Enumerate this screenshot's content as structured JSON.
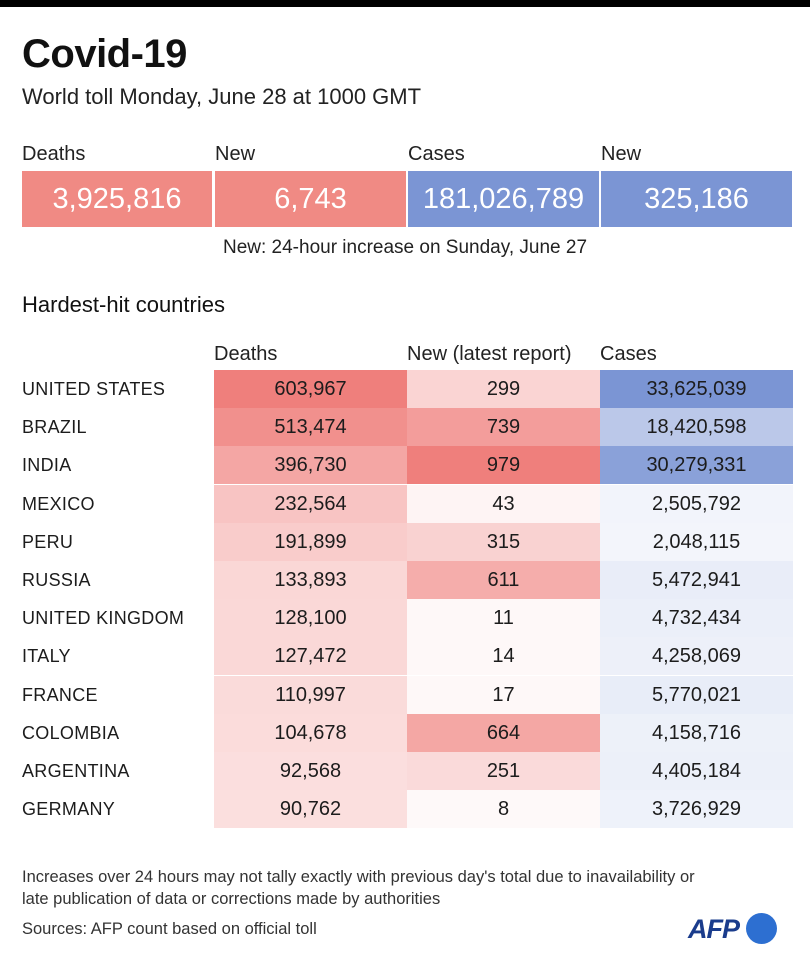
{
  "header": {
    "title": "Covid-19",
    "subtitle": "World toll Monday, June 28 at 1000 GMT"
  },
  "summary": [
    {
      "label": "Deaths",
      "value": "3,925,816",
      "color": "#f08a84"
    },
    {
      "label": "New",
      "value": "6,743",
      "color": "#f08a84"
    },
    {
      "label": "Cases",
      "value": "181,026,789",
      "color": "#7b95d4"
    },
    {
      "label": "New",
      "value": "325,186",
      "color": "#7b95d4"
    }
  ],
  "summary_note": "New: 24-hour increase on Sunday, June 27",
  "section_title": "Hardest-hit countries",
  "chart_data": {
    "type": "table",
    "columns": [
      "Deaths",
      "New (latest report)",
      "Cases"
    ],
    "rows": [
      {
        "country": "UNITED STATES",
        "deaths": "603,967",
        "new": "299",
        "cases": "33,625,039"
      },
      {
        "country": "BRAZIL",
        "deaths": "513,474",
        "new": "739",
        "cases": "18,420,598"
      },
      {
        "country": "INDIA",
        "deaths": "396,730",
        "new": "979",
        "cases": "30,279,331"
      },
      {
        "country": "MEXICO",
        "deaths": "232,564",
        "new": "43",
        "cases": "2,505,792"
      },
      {
        "country": "PERU",
        "deaths": "191,899",
        "new": "315",
        "cases": "2,048,115"
      },
      {
        "country": "RUSSIA",
        "deaths": "133,893",
        "new": "611",
        "cases": "5,472,941"
      },
      {
        "country": "UNITED KINGDOM",
        "deaths": "128,100",
        "new": "11",
        "cases": "4,732,434"
      },
      {
        "country": "ITALY",
        "deaths": "127,472",
        "new": "14",
        "cases": "4,258,069"
      },
      {
        "country": "FRANCE",
        "deaths": "110,997",
        "new": "17",
        "cases": "5,770,021"
      },
      {
        "country": "COLOMBIA",
        "deaths": "104,678",
        "new": "664",
        "cases": "4,158,716"
      },
      {
        "country": "ARGENTINA",
        "deaths": "92,568",
        "new": "251",
        "cases": "4,405,184"
      },
      {
        "country": "GERMANY",
        "deaths": "90,762",
        "new": "8",
        "cases": "3,726,929"
      }
    ],
    "heat_colors": {
      "deaths_new": "#ef7f7c",
      "cases": "#7b95d4"
    }
  },
  "footnote": "Increases over 24 hours may not tally exactly with previous day's total due to inavailability or late publication of data or corrections made by authorities",
  "sources": "Sources: AFP count based on official toll",
  "logo_text": "AFP"
}
